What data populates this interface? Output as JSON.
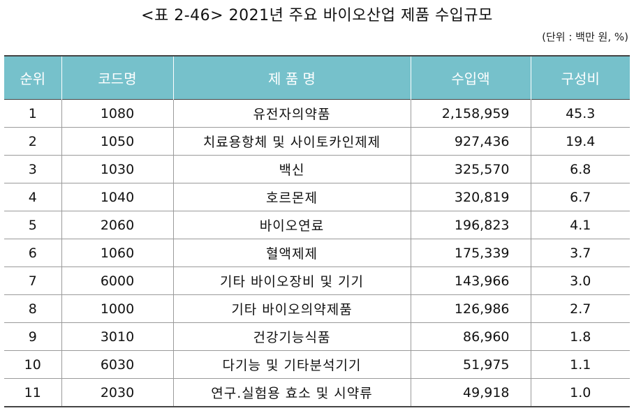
{
  "title": "<표 2-46> 2021년 주요 바이오산업 제품 수입규모",
  "unit": "(단위 : 백만 원, %)",
  "headers": [
    "순위",
    "코드명",
    "제 품 명",
    "수입액",
    "구성비"
  ],
  "rows": [
    {
      "rank": "1",
      "code": "1080",
      "product": "유전자의약품",
      "amount": "2,158,959",
      "share": "45.3"
    },
    {
      "rank": "2",
      "code": "1050",
      "product": "치료용항체 및 사이토카인제제",
      "amount": "927,436",
      "share": "19.4"
    },
    {
      "rank": "3",
      "code": "1030",
      "product": "백신",
      "amount": "325,570",
      "share": "6.8"
    },
    {
      "rank": "4",
      "code": "1040",
      "product": "호르몬제",
      "amount": "320,819",
      "share": "6.7"
    },
    {
      "rank": "5",
      "code": "2060",
      "product": "바이오연료",
      "amount": "196,823",
      "share": "4.1"
    },
    {
      "rank": "6",
      "code": "1060",
      "product": "혈액제제",
      "amount": "175,339",
      "share": "3.7"
    },
    {
      "rank": "7",
      "code": "6000",
      "product": "기타 바이오장비 및 기기",
      "amount": "143,966",
      "share": "3.0"
    },
    {
      "rank": "8",
      "code": "1000",
      "product": "기타 바이오의약제품",
      "amount": "126,986",
      "share": "2.7"
    },
    {
      "rank": "9",
      "code": "3010",
      "product": "건강기능식품",
      "amount": "86,960",
      "share": "1.8"
    },
    {
      "rank": "10",
      "code": "6030",
      "product": "다기능 및 기타분석기기",
      "amount": "51,975",
      "share": "1.1"
    },
    {
      "rank": "11",
      "code": "2030",
      "product": "연구.실험용 효소 및 시약류",
      "amount": "49,918",
      "share": "1.0"
    }
  ],
  "colors": {
    "header_bg": "#76c1cb",
    "header_text": "#ffffff"
  }
}
